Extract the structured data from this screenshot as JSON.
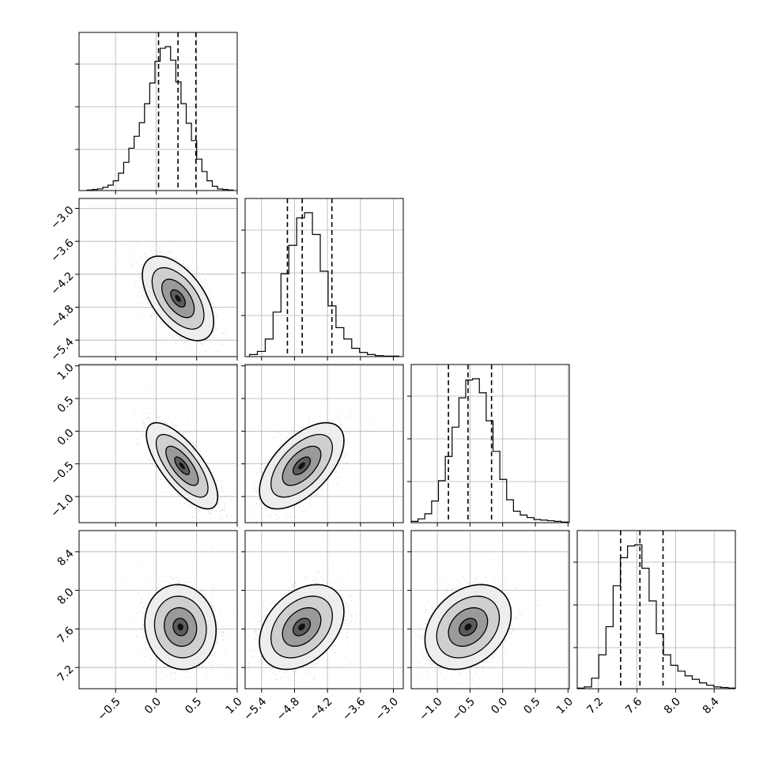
{
  "chart_data": {
    "type": "corner",
    "parameters": 4,
    "colors": {
      "line": "#000000",
      "grid": "#b0b0b0",
      "scatter": "#7f7f7f",
      "background": "#ffffff"
    },
    "axis_ranges": [
      [
        -0.95,
        1.0
      ],
      [
        -5.7,
        -2.82
      ],
      [
        -1.4,
        1.02
      ],
      [
        6.98,
        8.62
      ]
    ],
    "tick_labels": [
      [
        "−0.5",
        "0.0",
        "0.5",
        "1.0"
      ],
      [
        "−5.4",
        "−4.8",
        "−4.2",
        "−3.6",
        "−3.0"
      ],
      [
        "−1.0",
        "−0.5",
        "0.0",
        "0.5",
        "1.0"
      ],
      [
        "7.2",
        "7.6",
        "8.0",
        "8.4"
      ]
    ],
    "tick_values": [
      [
        -0.5,
        0.0,
        0.5,
        1.0
      ],
      [
        -5.4,
        -4.8,
        -4.2,
        -3.6,
        -3.0
      ],
      [
        -1.0,
        -0.5,
        0.0,
        0.5,
        1.0
      ],
      [
        7.2,
        7.6,
        8.0,
        8.4
      ]
    ],
    "diag_y_ticks": [
      0.26,
      0.53,
      0.8
    ],
    "quantile_lines": [
      [
        0.03,
        0.27,
        0.49
      ],
      [
        -4.93,
        -4.66,
        -4.12
      ],
      [
        -0.83,
        -0.53,
        -0.17
      ],
      [
        7.43,
        7.63,
        7.87
      ]
    ],
    "marginals": [
      {
        "bins": [
          -0.85,
          0.95
        ],
        "counts": [
          1,
          2,
          3,
          6,
          10,
          18,
          32,
          52,
          78,
          100,
          125,
          160,
          198,
          238,
          262,
          265,
          240,
          200,
          160,
          124,
          92,
          58,
          35,
          18,
          8,
          3,
          2,
          1
        ]
      },
      {
        "bins": [
          -5.62,
          -2.9
        ],
        "counts": [
          4,
          10,
          34,
          86,
          160,
          215,
          268,
          278,
          236,
          165,
          98,
          56,
          34,
          16,
          8,
          4,
          2,
          1,
          1
        ]
      },
      {
        "bins": [
          -1.4,
          1.0
        ],
        "counts": [
          2,
          6,
          14,
          34,
          66,
          104,
          150,
          196,
          224,
          226,
          204,
          160,
          112,
          68,
          36,
          18,
          12,
          8,
          5,
          4,
          3,
          2,
          1
        ]
      },
      {
        "bins": [
          6.98,
          8.62
        ],
        "counts": [
          1,
          3,
          18,
          58,
          106,
          176,
          224,
          244,
          246,
          206,
          150,
          94,
          58,
          40,
          30,
          22,
          16,
          10,
          6,
          3,
          2,
          1
        ]
      }
    ],
    "joint": {
      "1_0": {
        "mean_x": 0.27,
        "mean_y": -4.64,
        "sd_x": 0.2,
        "sd_y": 0.35,
        "corr": -0.55
      },
      "2_0": {
        "mean_x": 0.32,
        "mean_y": -0.53,
        "sd_x": 0.2,
        "sd_y": 0.3,
        "corr": -0.72
      },
      "2_1": {
        "mean_x": -4.67,
        "mean_y": -0.53,
        "sd_x": 0.35,
        "sd_y": 0.3,
        "corr": 0.58
      },
      "3_0": {
        "mean_x": 0.3,
        "mean_y": 7.62,
        "sd_x": 0.2,
        "sd_y": 0.2,
        "corr": -0.08
      },
      "3_1": {
        "mean_x": -4.67,
        "mean_y": 7.62,
        "sd_x": 0.35,
        "sd_y": 0.2,
        "corr": 0.36
      },
      "3_2": {
        "mean_x": -0.53,
        "mean_y": 7.62,
        "sd_x": 0.3,
        "sd_y": 0.2,
        "corr": 0.3
      }
    }
  }
}
